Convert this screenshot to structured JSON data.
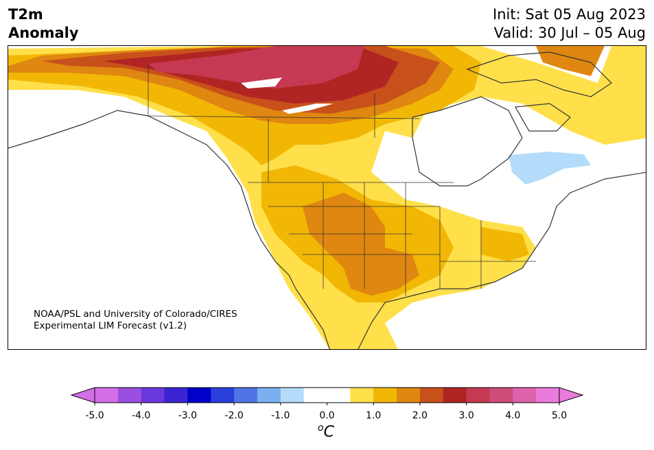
{
  "title": {
    "left_line1": "T2m",
    "left_line2": "Anomaly",
    "init": "Init: Sat 05 Aug 2023",
    "valid": "Valid: 30 Jul – 05 Aug"
  },
  "credit": {
    "line1": "NOAA/PSL and University of Colorado/CIRES",
    "line2": "Experimental LIM Forecast (v1.2)"
  },
  "colorbar": {
    "unit_base": "C",
    "unit_sup": "o",
    "ticks": [
      "-5.0",
      "-4.0",
      "-3.0",
      "-2.0",
      "-1.0",
      "0.0",
      "1.0",
      "2.0",
      "3.0",
      "4.0",
      "5.0"
    ],
    "colors": [
      "#d36ee6",
      "#9b4fe0",
      "#6a37db",
      "#3a24d2",
      "#0000c8",
      "#2a3edb",
      "#4e74e6",
      "#7ab0f0",
      "#b4dcfa",
      "#ffffff",
      "#ffffff",
      "#ffe04a",
      "#f2b705",
      "#df8710",
      "#c8501a",
      "#b02424",
      "#c53a52",
      "#cc4d7a",
      "#dc62ac",
      "#ea7adb"
    ],
    "under_color": "#d36ee6",
    "over_color": "#ea7adb"
  },
  "map": {
    "colors": {
      "land_outline": "#333333",
      "anom_05": "#ffe04a",
      "anom_10": "#f2b705",
      "anom_15": "#df8710",
      "anom_20": "#c8501a",
      "anom_25": "#b02424",
      "anom_30": "#c53a52",
      "anom_35": "#cc4d7a",
      "neg_05": "#b4dcfa"
    }
  }
}
